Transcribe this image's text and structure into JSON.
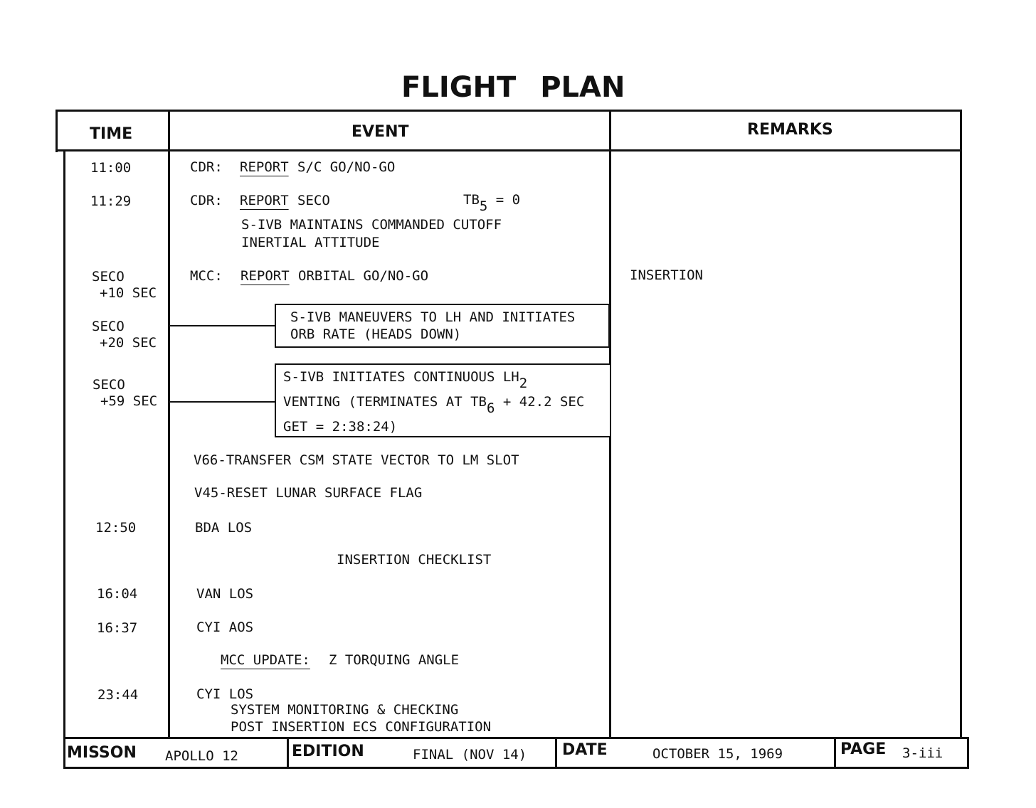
{
  "title": "FLIGHT PLAN",
  "headers": {
    "time": "TIME",
    "event": "EVENT",
    "remarks": "REMARKS"
  },
  "rows": {
    "r1": {
      "time": "11:00",
      "who": "CDR:",
      "verb": "REPORT",
      "text": "S/C GO/NO-GO"
    },
    "r2": {
      "time": "11:29",
      "who": "CDR:",
      "verb": "REPORT",
      "text": "SECO",
      "tb": "TB",
      "tb_sub": "5",
      "tb_eq": "= 0",
      "line2": "S-IVB MAINTAINS COMMANDED CUTOFF",
      "line3": "INERTIAL ATTITUDE"
    },
    "r3": {
      "time1": "SECO",
      "time2": "+10 SEC",
      "who": "MCC:",
      "verb": "REPORT",
      "text": "ORBITAL GO/NO-GO",
      "remark": "INSERTION"
    },
    "r4": {
      "time1": "SECO",
      "time2": "+20 SEC",
      "line1": "S-IVB MANEUVERS TO LH AND INITIATES",
      "line2": "ORB RATE (HEADS DOWN)"
    },
    "r5": {
      "time1": "SECO",
      "time2": "+59 SEC",
      "line1": "S-IVB INITIATES CONTINUOUS LH",
      "line1_sub": "2",
      "line2a": "VENTING (TERMINATES AT TB",
      "line2_sub": "6",
      "line2b": "+ 42.2 SEC",
      "line3": "GET = 2:38:24)"
    },
    "r6": {
      "text": "V66-TRANSFER CSM STATE VECTOR TO LM SLOT"
    },
    "r7": {
      "text": "V45-RESET LUNAR SURFACE FLAG"
    },
    "r8": {
      "time": "12:50",
      "text": "BDA LOS"
    },
    "r9": {
      "text": "INSERTION CHECKLIST"
    },
    "r10": {
      "time": "16:04",
      "text": "VAN LOS"
    },
    "r11": {
      "time": "16:37",
      "text": "CYI AOS"
    },
    "r12": {
      "label": "MCC UPDATE:",
      "text": "Z TORQUING ANGLE"
    },
    "r13": {
      "time": "23:44",
      "text": "CYI LOS",
      "line2": "SYSTEM MONITORING & CHECKING",
      "line3": "POST INSERTION ECS CONFIGURATION"
    }
  },
  "footer": {
    "mission_label": "MISSON",
    "mission": "APOLLO 12",
    "edition_label": "EDITION",
    "edition": "FINAL (NOV 14)",
    "date_label": "DATE",
    "date": "OCTOBER 15, 1969",
    "page_label": "PAGE",
    "page": "3-iii"
  }
}
